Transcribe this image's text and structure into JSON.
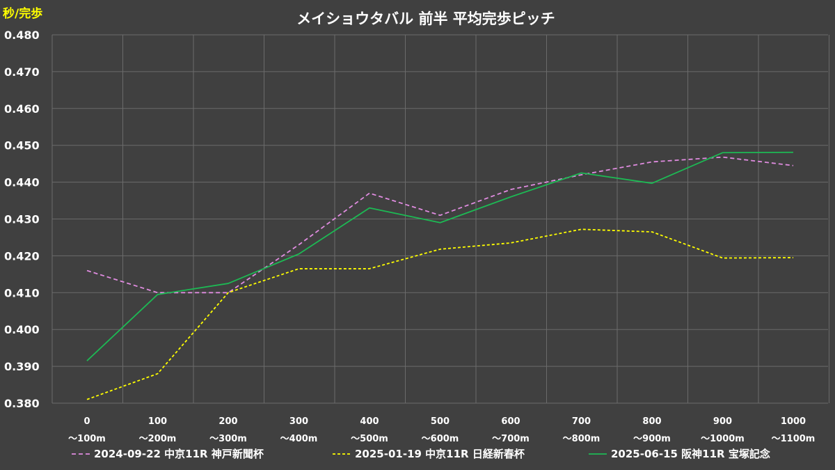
{
  "chart_data": {
    "type": "line",
    "title": "メイショウタバル 前半 平均完歩ピッチ",
    "ylabel": "秒/完歩",
    "ylim": [
      0.38,
      0.48
    ],
    "yticks": [
      "0.480",
      "0.470",
      "0.460",
      "0.450",
      "0.440",
      "0.430",
      "0.420",
      "0.410",
      "0.400",
      "0.390",
      "0.380"
    ],
    "categories": [
      "0",
      "100",
      "200",
      "300",
      "400",
      "500",
      "600",
      "700",
      "800",
      "900",
      "1000"
    ],
    "categories_sub": [
      "～100m",
      "～200m",
      "～300m",
      "～400m",
      "～500m",
      "～600m",
      "～700m",
      "～800m",
      "～900m",
      "～1000m",
      "～1100m"
    ],
    "grid": true,
    "legend_position": "bottom",
    "series": [
      {
        "name": "2024-09-22 中京11R 神戸新聞杯",
        "color": "#e08ce0",
        "dash": "dashed",
        "values": [
          0.416,
          0.41,
          0.41,
          0.423,
          0.437,
          0.431,
          0.438,
          0.442,
          0.4455,
          0.4468,
          0.4445
        ]
      },
      {
        "name": "2025-01-19 中京11R 日経新春杯",
        "color": "#ffff00",
        "dash": "dotted",
        "values": [
          0.381,
          0.388,
          0.41,
          0.4165,
          0.4165,
          0.4218,
          0.4235,
          0.4272,
          0.4265,
          0.4194,
          0.4195
        ]
      },
      {
        "name": "2025-06-15 阪神11R 宝塚記念",
        "color": "#1db954",
        "dash": "solid",
        "values": [
          0.3915,
          0.4095,
          0.4125,
          0.4205,
          0.433,
          0.429,
          0.436,
          0.4425,
          0.4397,
          0.448,
          0.4481
        ]
      }
    ]
  }
}
